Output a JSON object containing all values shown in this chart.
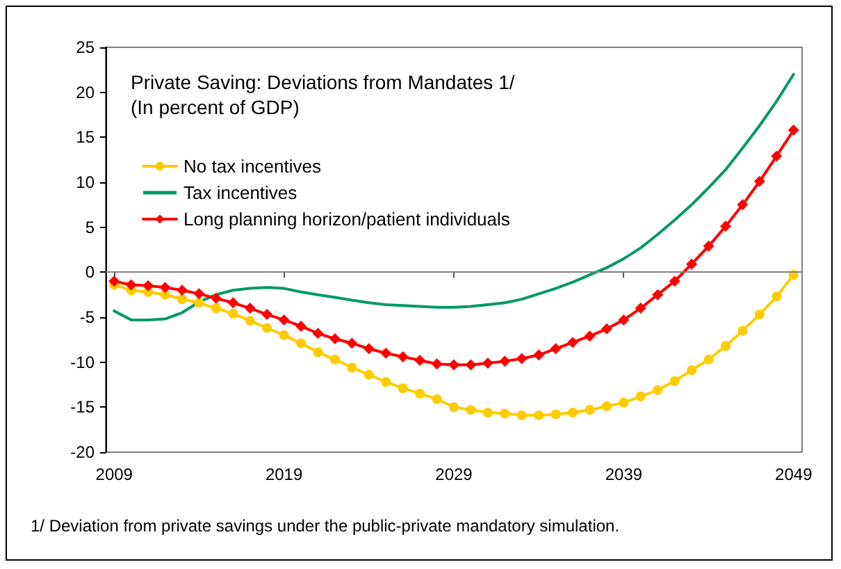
{
  "chart_data": {
    "type": "line",
    "title": "Private Saving: Deviations from Mandates 1/",
    "subtitle": "(In percent of GDP)",
    "annotations": [
      "1/ Deviation from private savings under the public-private mandatory simulation."
    ],
    "x": [
      2009,
      2010,
      2011,
      2012,
      2013,
      2014,
      2015,
      2016,
      2017,
      2018,
      2019,
      2020,
      2021,
      2022,
      2023,
      2024,
      2025,
      2026,
      2027,
      2028,
      2029,
      2030,
      2031,
      2032,
      2033,
      2034,
      2035,
      2036,
      2037,
      2038,
      2039,
      2040,
      2041,
      2042,
      2043,
      2044,
      2045,
      2046,
      2047,
      2048,
      2049
    ],
    "xlim": [
      2008.5,
      2049.5
    ],
    "xticks": [
      2009,
      2019,
      2029,
      2039,
      2049
    ],
    "ylim": [
      -20,
      25
    ],
    "yticks": [
      -20,
      -15,
      -10,
      -5,
      0,
      5,
      10,
      15,
      20,
      25
    ],
    "grid": false,
    "legend": "top left",
    "ref_lines": [
      {
        "axis": "y",
        "value": 0,
        "color": "#808080"
      }
    ],
    "series": [
      {
        "name": "No tax incentives",
        "color": "#ffcc00",
        "marker": "circle",
        "values": [
          -1.4,
          -2.0,
          -2.2,
          -2.5,
          -3.0,
          -3.4,
          -4.0,
          -4.6,
          -5.4,
          -6.2,
          -7.0,
          -7.9,
          -8.9,
          -9.7,
          -10.6,
          -11.4,
          -12.2,
          -12.9,
          -13.5,
          -14.1,
          -15.0,
          -15.3,
          -15.6,
          -15.7,
          -15.9,
          -15.9,
          -15.8,
          -15.6,
          -15.3,
          -14.9,
          -14.5,
          -13.8,
          -13.1,
          -12.1,
          -10.9,
          -9.7,
          -8.2,
          -6.5,
          -4.7,
          -2.7,
          -0.3
        ]
      },
      {
        "name": "Tax incentives",
        "color": "#009966",
        "marker": "none",
        "values": [
          -4.3,
          -5.3,
          -5.3,
          -5.2,
          -4.5,
          -3.3,
          -2.5,
          -2.0,
          -1.8,
          -1.7,
          -1.8,
          -2.2,
          -2.5,
          -2.8,
          -3.1,
          -3.4,
          -3.6,
          -3.7,
          -3.8,
          -3.9,
          -3.9,
          -3.8,
          -3.6,
          -3.4,
          -3.0,
          -2.4,
          -1.8,
          -1.1,
          -0.3,
          0.5,
          1.5,
          2.7,
          4.2,
          5.8,
          7.5,
          9.4,
          11.4,
          13.8,
          16.3,
          19.0,
          22.0
        ]
      },
      {
        "name": "Long planning horizon/patient individuals",
        "color": "#ff0000",
        "marker": "diamond",
        "values": [
          -1.0,
          -1.4,
          -1.5,
          -1.7,
          -2.0,
          -2.4,
          -2.9,
          -3.4,
          -4.0,
          -4.7,
          -5.3,
          -6.0,
          -6.8,
          -7.4,
          -7.9,
          -8.5,
          -9.0,
          -9.4,
          -9.8,
          -10.2,
          -10.3,
          -10.3,
          -10.1,
          -9.9,
          -9.6,
          -9.2,
          -8.5,
          -7.8,
          -7.1,
          -6.3,
          -5.3,
          -4.0,
          -2.5,
          -1.0,
          0.9,
          2.9,
          5.1,
          7.5,
          10.1,
          12.9,
          15.8
        ]
      }
    ]
  }
}
